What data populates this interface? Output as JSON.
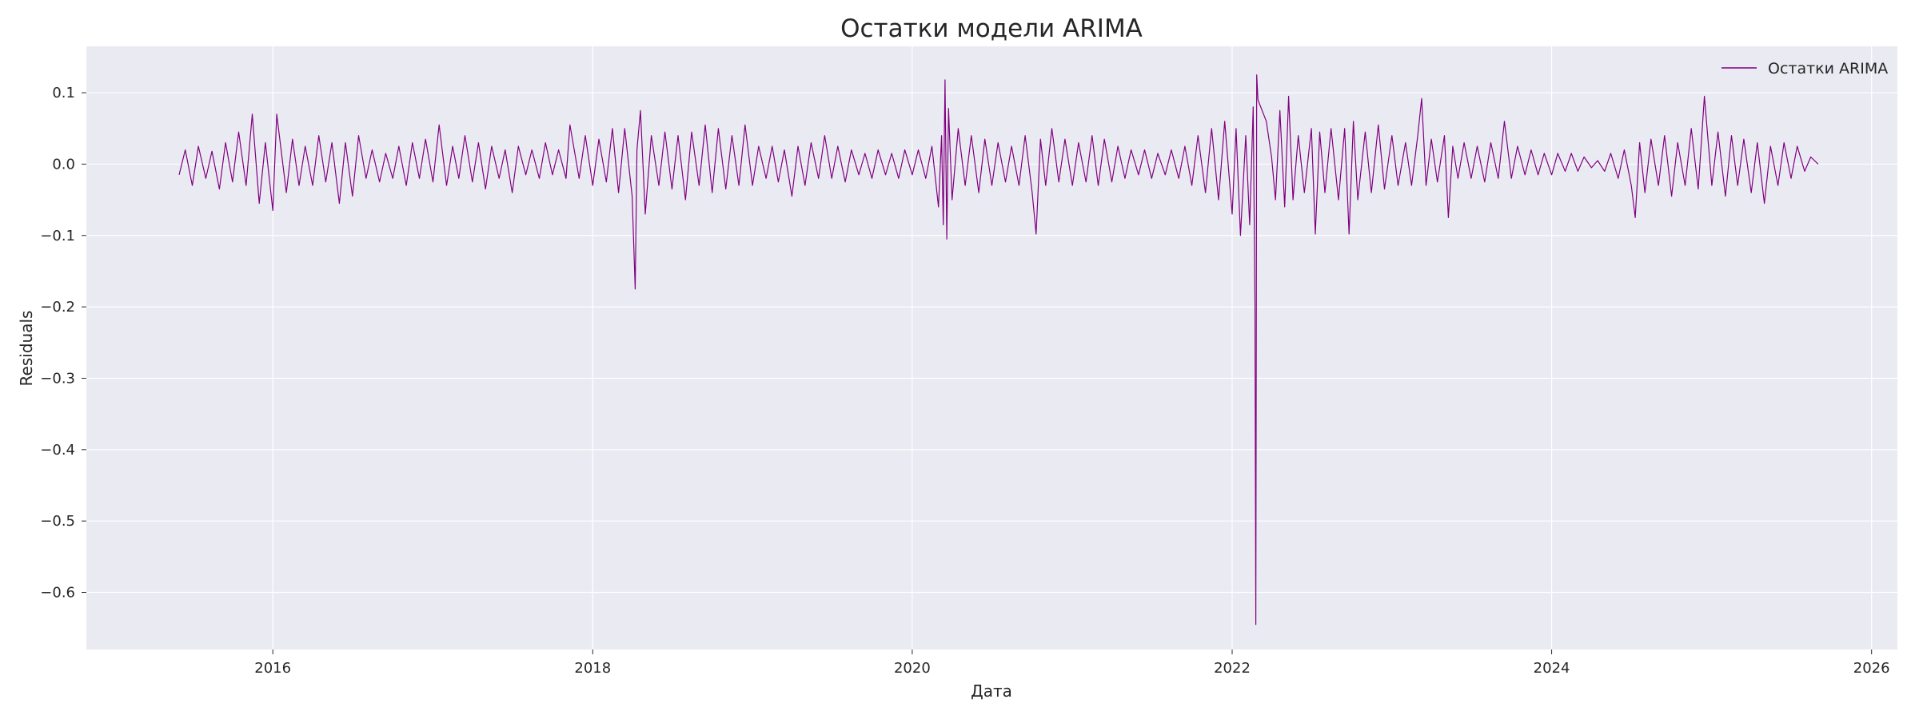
{
  "chart_data": {
    "type": "line",
    "title": "Остатки модели ARIMA",
    "xlabel": "Дата",
    "ylabel": "Residuals",
    "x_axis_type": "date",
    "xlim": [
      "2014-11-01",
      "2026-03-01"
    ],
    "ylim": [
      -0.68,
      0.165
    ],
    "x_ticks": [
      "2016",
      "2018",
      "2020",
      "2022",
      "2024",
      "2026"
    ],
    "y_ticks": [
      {
        "value": 0.1,
        "label": "0.1"
      },
      {
        "value": 0.0,
        "label": "0.0"
      },
      {
        "value": -0.1,
        "label": "−0.1"
      },
      {
        "value": -0.2,
        "label": "−0.2"
      },
      {
        "value": -0.3,
        "label": "−0.3"
      },
      {
        "value": -0.4,
        "label": "−0.4"
      },
      {
        "value": -0.5,
        "label": "−0.5"
      },
      {
        "value": -0.6,
        "label": "−0.6"
      }
    ],
    "grid": true,
    "legend_position": "top-right",
    "background_color": "#EAEAF2",
    "series": [
      {
        "name": "Остатки ARIMA",
        "color": "#800080",
        "points": [
          [
            "2015-06-01",
            -0.015
          ],
          [
            "2015-06-15",
            0.02
          ],
          [
            "2015-07-01",
            -0.03
          ],
          [
            "2015-07-15",
            0.025
          ],
          [
            "2015-08-01",
            -0.02
          ],
          [
            "2015-08-15",
            0.018
          ],
          [
            "2015-09-01",
            -0.035
          ],
          [
            "2015-09-15",
            0.03
          ],
          [
            "2015-10-01",
            -0.025
          ],
          [
            "2015-10-15",
            0.045
          ],
          [
            "2015-11-01",
            -0.03
          ],
          [
            "2015-11-15",
            0.07
          ],
          [
            "2015-12-01",
            -0.055
          ],
          [
            "2015-12-15",
            0.03
          ],
          [
            "2016-01-01",
            -0.065
          ],
          [
            "2016-01-10",
            0.07
          ],
          [
            "2016-02-01",
            -0.04
          ],
          [
            "2016-02-15",
            0.035
          ],
          [
            "2016-03-01",
            -0.03
          ],
          [
            "2016-03-15",
            0.025
          ],
          [
            "2016-04-01",
            -0.03
          ],
          [
            "2016-04-15",
            0.04
          ],
          [
            "2016-05-01",
            -0.025
          ],
          [
            "2016-05-15",
            0.03
          ],
          [
            "2016-06-01",
            -0.055
          ],
          [
            "2016-06-15",
            0.03
          ],
          [
            "2016-07-01",
            -0.045
          ],
          [
            "2016-07-15",
            0.04
          ],
          [
            "2016-08-01",
            -0.02
          ],
          [
            "2016-08-15",
            0.02
          ],
          [
            "2016-09-01",
            -0.025
          ],
          [
            "2016-09-15",
            0.015
          ],
          [
            "2016-10-01",
            -0.02
          ],
          [
            "2016-10-15",
            0.025
          ],
          [
            "2016-11-01",
            -0.03
          ],
          [
            "2016-11-15",
            0.03
          ],
          [
            "2016-12-01",
            -0.02
          ],
          [
            "2016-12-15",
            0.035
          ],
          [
            "2017-01-01",
            -0.025
          ],
          [
            "2017-01-15",
            0.055
          ],
          [
            "2017-02-01",
            -0.03
          ],
          [
            "2017-02-15",
            0.025
          ],
          [
            "2017-03-01",
            -0.02
          ],
          [
            "2017-03-15",
            0.04
          ],
          [
            "2017-04-01",
            -0.025
          ],
          [
            "2017-04-15",
            0.03
          ],
          [
            "2017-05-01",
            -0.035
          ],
          [
            "2017-05-15",
            0.025
          ],
          [
            "2017-06-01",
            -0.02
          ],
          [
            "2017-06-15",
            0.02
          ],
          [
            "2017-07-01",
            -0.04
          ],
          [
            "2017-07-15",
            0.025
          ],
          [
            "2017-08-01",
            -0.015
          ],
          [
            "2017-08-15",
            0.02
          ],
          [
            "2017-09-01",
            -0.02
          ],
          [
            "2017-09-15",
            0.03
          ],
          [
            "2017-10-01",
            -0.015
          ],
          [
            "2017-10-15",
            0.02
          ],
          [
            "2017-11-01",
            -0.02
          ],
          [
            "2017-11-10",
            0.055
          ],
          [
            "2017-12-01",
            -0.02
          ],
          [
            "2017-12-15",
            0.04
          ],
          [
            "2018-01-01",
            -0.03
          ],
          [
            "2018-01-15",
            0.035
          ],
          [
            "2018-02-01",
            -0.025
          ],
          [
            "2018-02-15",
            0.05
          ],
          [
            "2018-03-01",
            -0.04
          ],
          [
            "2018-03-15",
            0.05
          ],
          [
            "2018-04-01",
            -0.045
          ],
          [
            "2018-04-08",
            -0.175
          ],
          [
            "2018-04-12",
            0.02
          ],
          [
            "2018-04-20",
            0.075
          ],
          [
            "2018-05-01",
            -0.07
          ],
          [
            "2018-05-15",
            0.04
          ],
          [
            "2018-06-01",
            -0.03
          ],
          [
            "2018-06-15",
            0.045
          ],
          [
            "2018-07-01",
            -0.035
          ],
          [
            "2018-07-15",
            0.04
          ],
          [
            "2018-08-01",
            -0.05
          ],
          [
            "2018-08-15",
            0.045
          ],
          [
            "2018-09-01",
            -0.03
          ],
          [
            "2018-09-15",
            0.055
          ],
          [
            "2018-10-01",
            -0.04
          ],
          [
            "2018-10-15",
            0.05
          ],
          [
            "2018-11-01",
            -0.035
          ],
          [
            "2018-11-15",
            0.04
          ],
          [
            "2018-12-01",
            -0.03
          ],
          [
            "2018-12-15",
            0.055
          ],
          [
            "2019-01-01",
            -0.03
          ],
          [
            "2019-01-15",
            0.025
          ],
          [
            "2019-02-01",
            -0.02
          ],
          [
            "2019-02-15",
            0.025
          ],
          [
            "2019-03-01",
            -0.025
          ],
          [
            "2019-03-15",
            0.02
          ],
          [
            "2019-04-01",
            -0.045
          ],
          [
            "2019-04-15",
            0.025
          ],
          [
            "2019-05-01",
            -0.03
          ],
          [
            "2019-05-15",
            0.03
          ],
          [
            "2019-06-01",
            -0.02
          ],
          [
            "2019-06-15",
            0.04
          ],
          [
            "2019-07-01",
            -0.02
          ],
          [
            "2019-07-15",
            0.025
          ],
          [
            "2019-08-01",
            -0.025
          ],
          [
            "2019-08-15",
            0.02
          ],
          [
            "2019-09-01",
            -0.015
          ],
          [
            "2019-09-15",
            0.015
          ],
          [
            "2019-10-01",
            -0.02
          ],
          [
            "2019-10-15",
            0.02
          ],
          [
            "2019-11-01",
            -0.015
          ],
          [
            "2019-11-15",
            0.015
          ],
          [
            "2019-12-01",
            -0.02
          ],
          [
            "2019-12-15",
            0.02
          ],
          [
            "2020-01-01",
            -0.015
          ],
          [
            "2020-01-15",
            0.02
          ],
          [
            "2020-02-01",
            -0.02
          ],
          [
            "2020-02-15",
            0.025
          ],
          [
            "2020-03-01",
            -0.06
          ],
          [
            "2020-03-08",
            0.04
          ],
          [
            "2020-03-12",
            -0.085
          ],
          [
            "2020-03-16",
            0.118
          ],
          [
            "2020-03-20",
            -0.105
          ],
          [
            "2020-03-24",
            0.078
          ],
          [
            "2020-04-01",
            -0.05
          ],
          [
            "2020-04-15",
            0.05
          ],
          [
            "2020-05-01",
            -0.03
          ],
          [
            "2020-05-15",
            0.04
          ],
          [
            "2020-06-01",
            -0.04
          ],
          [
            "2020-06-15",
            0.035
          ],
          [
            "2020-07-01",
            -0.03
          ],
          [
            "2020-07-15",
            0.03
          ],
          [
            "2020-08-01",
            -0.025
          ],
          [
            "2020-08-15",
            0.025
          ],
          [
            "2020-09-01",
            -0.03
          ],
          [
            "2020-09-15",
            0.04
          ],
          [
            "2020-10-01",
            -0.04
          ],
          [
            "2020-10-10",
            -0.098
          ],
          [
            "2020-10-20",
            0.035
          ],
          [
            "2020-11-01",
            -0.03
          ],
          [
            "2020-11-15",
            0.05
          ],
          [
            "2020-12-01",
            -0.025
          ],
          [
            "2020-12-15",
            0.035
          ],
          [
            "2021-01-01",
            -0.03
          ],
          [
            "2021-01-15",
            0.03
          ],
          [
            "2021-02-01",
            -0.025
          ],
          [
            "2021-02-15",
            0.04
          ],
          [
            "2021-03-01",
            -0.03
          ],
          [
            "2021-03-15",
            0.035
          ],
          [
            "2021-04-01",
            -0.025
          ],
          [
            "2021-04-15",
            0.025
          ],
          [
            "2021-05-01",
            -0.02
          ],
          [
            "2021-05-15",
            0.02
          ],
          [
            "2021-06-01",
            -0.015
          ],
          [
            "2021-06-15",
            0.02
          ],
          [
            "2021-07-01",
            -0.02
          ],
          [
            "2021-07-15",
            0.015
          ],
          [
            "2021-08-01",
            -0.015
          ],
          [
            "2021-08-15",
            0.02
          ],
          [
            "2021-09-01",
            -0.02
          ],
          [
            "2021-09-15",
            0.025
          ],
          [
            "2021-10-01",
            -0.03
          ],
          [
            "2021-10-15",
            0.04
          ],
          [
            "2021-11-01",
            -0.04
          ],
          [
            "2021-11-15",
            0.05
          ],
          [
            "2021-12-01",
            -0.05
          ],
          [
            "2021-12-15",
            0.06
          ],
          [
            "2022-01-01",
            -0.07
          ],
          [
            "2022-01-10",
            0.05
          ],
          [
            "2022-01-20",
            -0.1
          ],
          [
            "2022-02-01",
            0.04
          ],
          [
            "2022-02-10",
            -0.085
          ],
          [
            "2022-02-18",
            0.08
          ],
          [
            "2022-02-22",
            -0.19
          ],
          [
            "2022-02-24",
            -0.645
          ],
          [
            "2022-02-26",
            0.125
          ],
          [
            "2022-03-01",
            0.09
          ],
          [
            "2022-03-20",
            0.06
          ],
          [
            "2022-04-01",
            0.01
          ],
          [
            "2022-04-10",
            -0.05
          ],
          [
            "2022-04-20",
            0.075
          ],
          [
            "2022-05-01",
            -0.06
          ],
          [
            "2022-05-10",
            0.095
          ],
          [
            "2022-05-20",
            -0.05
          ],
          [
            "2022-06-01",
            0.04
          ],
          [
            "2022-06-15",
            -0.04
          ],
          [
            "2022-07-01",
            0.05
          ],
          [
            "2022-07-10",
            -0.098
          ],
          [
            "2022-07-20",
            0.045
          ],
          [
            "2022-08-01",
            -0.04
          ],
          [
            "2022-08-15",
            0.05
          ],
          [
            "2022-09-01",
            -0.05
          ],
          [
            "2022-09-15",
            0.05
          ],
          [
            "2022-09-25",
            -0.098
          ],
          [
            "2022-10-05",
            0.06
          ],
          [
            "2022-10-15",
            -0.05
          ],
          [
            "2022-11-01",
            0.045
          ],
          [
            "2022-11-15",
            -0.04
          ],
          [
            "2022-12-01",
            0.055
          ],
          [
            "2022-12-15",
            -0.035
          ],
          [
            "2023-01-01",
            0.04
          ],
          [
            "2023-01-15",
            -0.03
          ],
          [
            "2023-02-01",
            0.03
          ],
          [
            "2023-02-15",
            -0.03
          ],
          [
            "2023-03-01",
            0.04
          ],
          [
            "2023-03-10",
            0.092
          ],
          [
            "2023-03-20",
            -0.03
          ],
          [
            "2023-04-01",
            0.035
          ],
          [
            "2023-04-15",
            -0.025
          ],
          [
            "2023-05-01",
            0.04
          ],
          [
            "2023-05-10",
            -0.075
          ],
          [
            "2023-05-20",
            0.025
          ],
          [
            "2023-06-01",
            -0.02
          ],
          [
            "2023-06-15",
            0.03
          ],
          [
            "2023-07-01",
            -0.02
          ],
          [
            "2023-07-15",
            0.025
          ],
          [
            "2023-08-01",
            -0.025
          ],
          [
            "2023-08-15",
            0.03
          ],
          [
            "2023-09-01",
            -0.02
          ],
          [
            "2023-09-15",
            0.06
          ],
          [
            "2023-10-01",
            -0.02
          ],
          [
            "2023-10-15",
            0.025
          ],
          [
            "2023-11-01",
            -0.015
          ],
          [
            "2023-11-15",
            0.02
          ],
          [
            "2023-12-01",
            -0.015
          ],
          [
            "2023-12-15",
            0.015
          ],
          [
            "2024-01-01",
            -0.015
          ],
          [
            "2024-01-15",
            0.015
          ],
          [
            "2024-02-01",
            -0.01
          ],
          [
            "2024-02-15",
            0.015
          ],
          [
            "2024-03-01",
            -0.01
          ],
          [
            "2024-03-15",
            0.01
          ],
          [
            "2024-04-01",
            -0.005
          ],
          [
            "2024-04-15",
            0.005
          ],
          [
            "2024-05-01",
            -0.01
          ],
          [
            "2024-05-15",
            0.015
          ],
          [
            "2024-06-01",
            -0.02
          ],
          [
            "2024-06-15",
            0.02
          ],
          [
            "2024-07-01",
            -0.03
          ],
          [
            "2024-07-10",
            -0.075
          ],
          [
            "2024-07-20",
            0.03
          ],
          [
            "2024-08-01",
            -0.04
          ],
          [
            "2024-08-15",
            0.035
          ],
          [
            "2024-09-01",
            -0.03
          ],
          [
            "2024-09-15",
            0.04
          ],
          [
            "2024-10-01",
            -0.045
          ],
          [
            "2024-10-15",
            0.03
          ],
          [
            "2024-11-01",
            -0.03
          ],
          [
            "2024-11-15",
            0.05
          ],
          [
            "2024-12-01",
            -0.035
          ],
          [
            "2024-12-15",
            0.095
          ],
          [
            "2025-01-01",
            -0.03
          ],
          [
            "2025-01-15",
            0.045
          ],
          [
            "2025-02-01",
            -0.045
          ],
          [
            "2025-02-15",
            0.04
          ],
          [
            "2025-03-01",
            -0.03
          ],
          [
            "2025-03-15",
            0.035
          ],
          [
            "2025-04-01",
            -0.04
          ],
          [
            "2025-04-15",
            0.03
          ],
          [
            "2025-05-01",
            -0.055
          ],
          [
            "2025-05-15",
            0.025
          ],
          [
            "2025-06-01",
            -0.03
          ],
          [
            "2025-06-15",
            0.03
          ],
          [
            "2025-07-01",
            -0.02
          ],
          [
            "2025-07-15",
            0.025
          ],
          [
            "2025-08-01",
            -0.01
          ],
          [
            "2025-08-15",
            0.01
          ],
          [
            "2025-09-01",
            0.0
          ]
        ]
      }
    ]
  }
}
